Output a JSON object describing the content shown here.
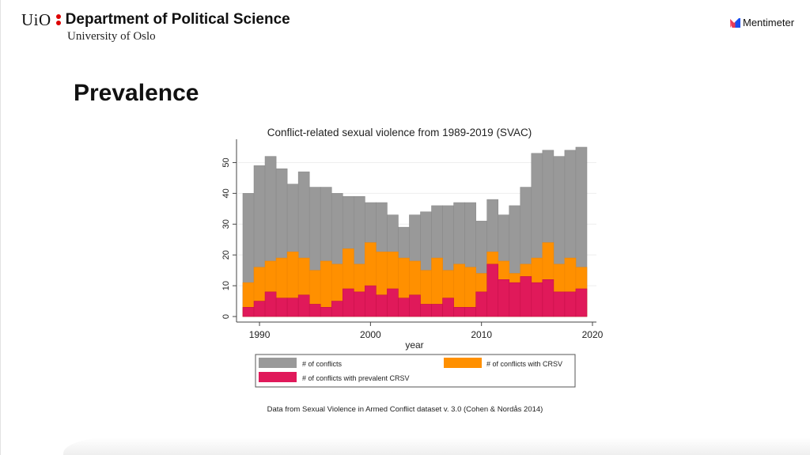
{
  "header": {
    "uio_logo_text": "UiO",
    "department": "Department of Political Science",
    "university": "University of Oslo"
  },
  "brand": {
    "name": "Mentimeter"
  },
  "slide": {
    "title": "Prevalence",
    "caption": "Data from Sexual Violence in Armed Conflict dataset v. 3.0 (Cohen & Nordås 2014)"
  },
  "colors": {
    "conflicts": "#999999",
    "crsv": "#ff9000",
    "prevalent": "#e0195a",
    "uio_red": "#dd0000"
  },
  "chart_data": {
    "type": "bar",
    "stacked": false,
    "overlay": true,
    "title": "Conflict-related sexual violence from 1989-2019 (SVAC)",
    "xlabel": "year",
    "ylabel": "",
    "xlim": [
      1988,
      2020.5
    ],
    "ylim": [
      0,
      55
    ],
    "xticks": [
      1990,
      2000,
      2010,
      2020
    ],
    "yticks": [
      0,
      10,
      20,
      30,
      40,
      50
    ],
    "grid": true,
    "legend_position": "bottom",
    "x": [
      1989,
      1990,
      1991,
      1992,
      1993,
      1994,
      1995,
      1996,
      1997,
      1998,
      1999,
      2000,
      2001,
      2002,
      2003,
      2004,
      2005,
      2006,
      2007,
      2008,
      2009,
      2010,
      2011,
      2012,
      2013,
      2014,
      2015,
      2016,
      2017,
      2018,
      2019
    ],
    "series": [
      {
        "name": "# of conflicts",
        "color_key": "conflicts",
        "values": [
          40,
          49,
          52,
          48,
          43,
          47,
          42,
          42,
          40,
          39,
          39,
          37,
          37,
          33,
          29,
          33,
          34,
          36,
          36,
          37,
          37,
          31,
          38,
          33,
          36,
          42,
          53,
          54,
          52,
          54,
          55
        ]
      },
      {
        "name": "# of conflicts with CRSV",
        "color_key": "crsv",
        "values": [
          11,
          16,
          18,
          19,
          21,
          19,
          15,
          18,
          17,
          22,
          17,
          24,
          21,
          21,
          19,
          18,
          15,
          19,
          15,
          17,
          16,
          14,
          21,
          18,
          14,
          17,
          19,
          24,
          17,
          19,
          16
        ]
      },
      {
        "name": "# of conflicts with prevalent CRSV",
        "color_key": "prevalent",
        "values": [
          3,
          5,
          8,
          6,
          6,
          7,
          4,
          3,
          5,
          9,
          8,
          10,
          7,
          9,
          6,
          7,
          4,
          4,
          6,
          3,
          3,
          8,
          17,
          12,
          11,
          13,
          11,
          12,
          8,
          8,
          9
        ]
      }
    ]
  }
}
